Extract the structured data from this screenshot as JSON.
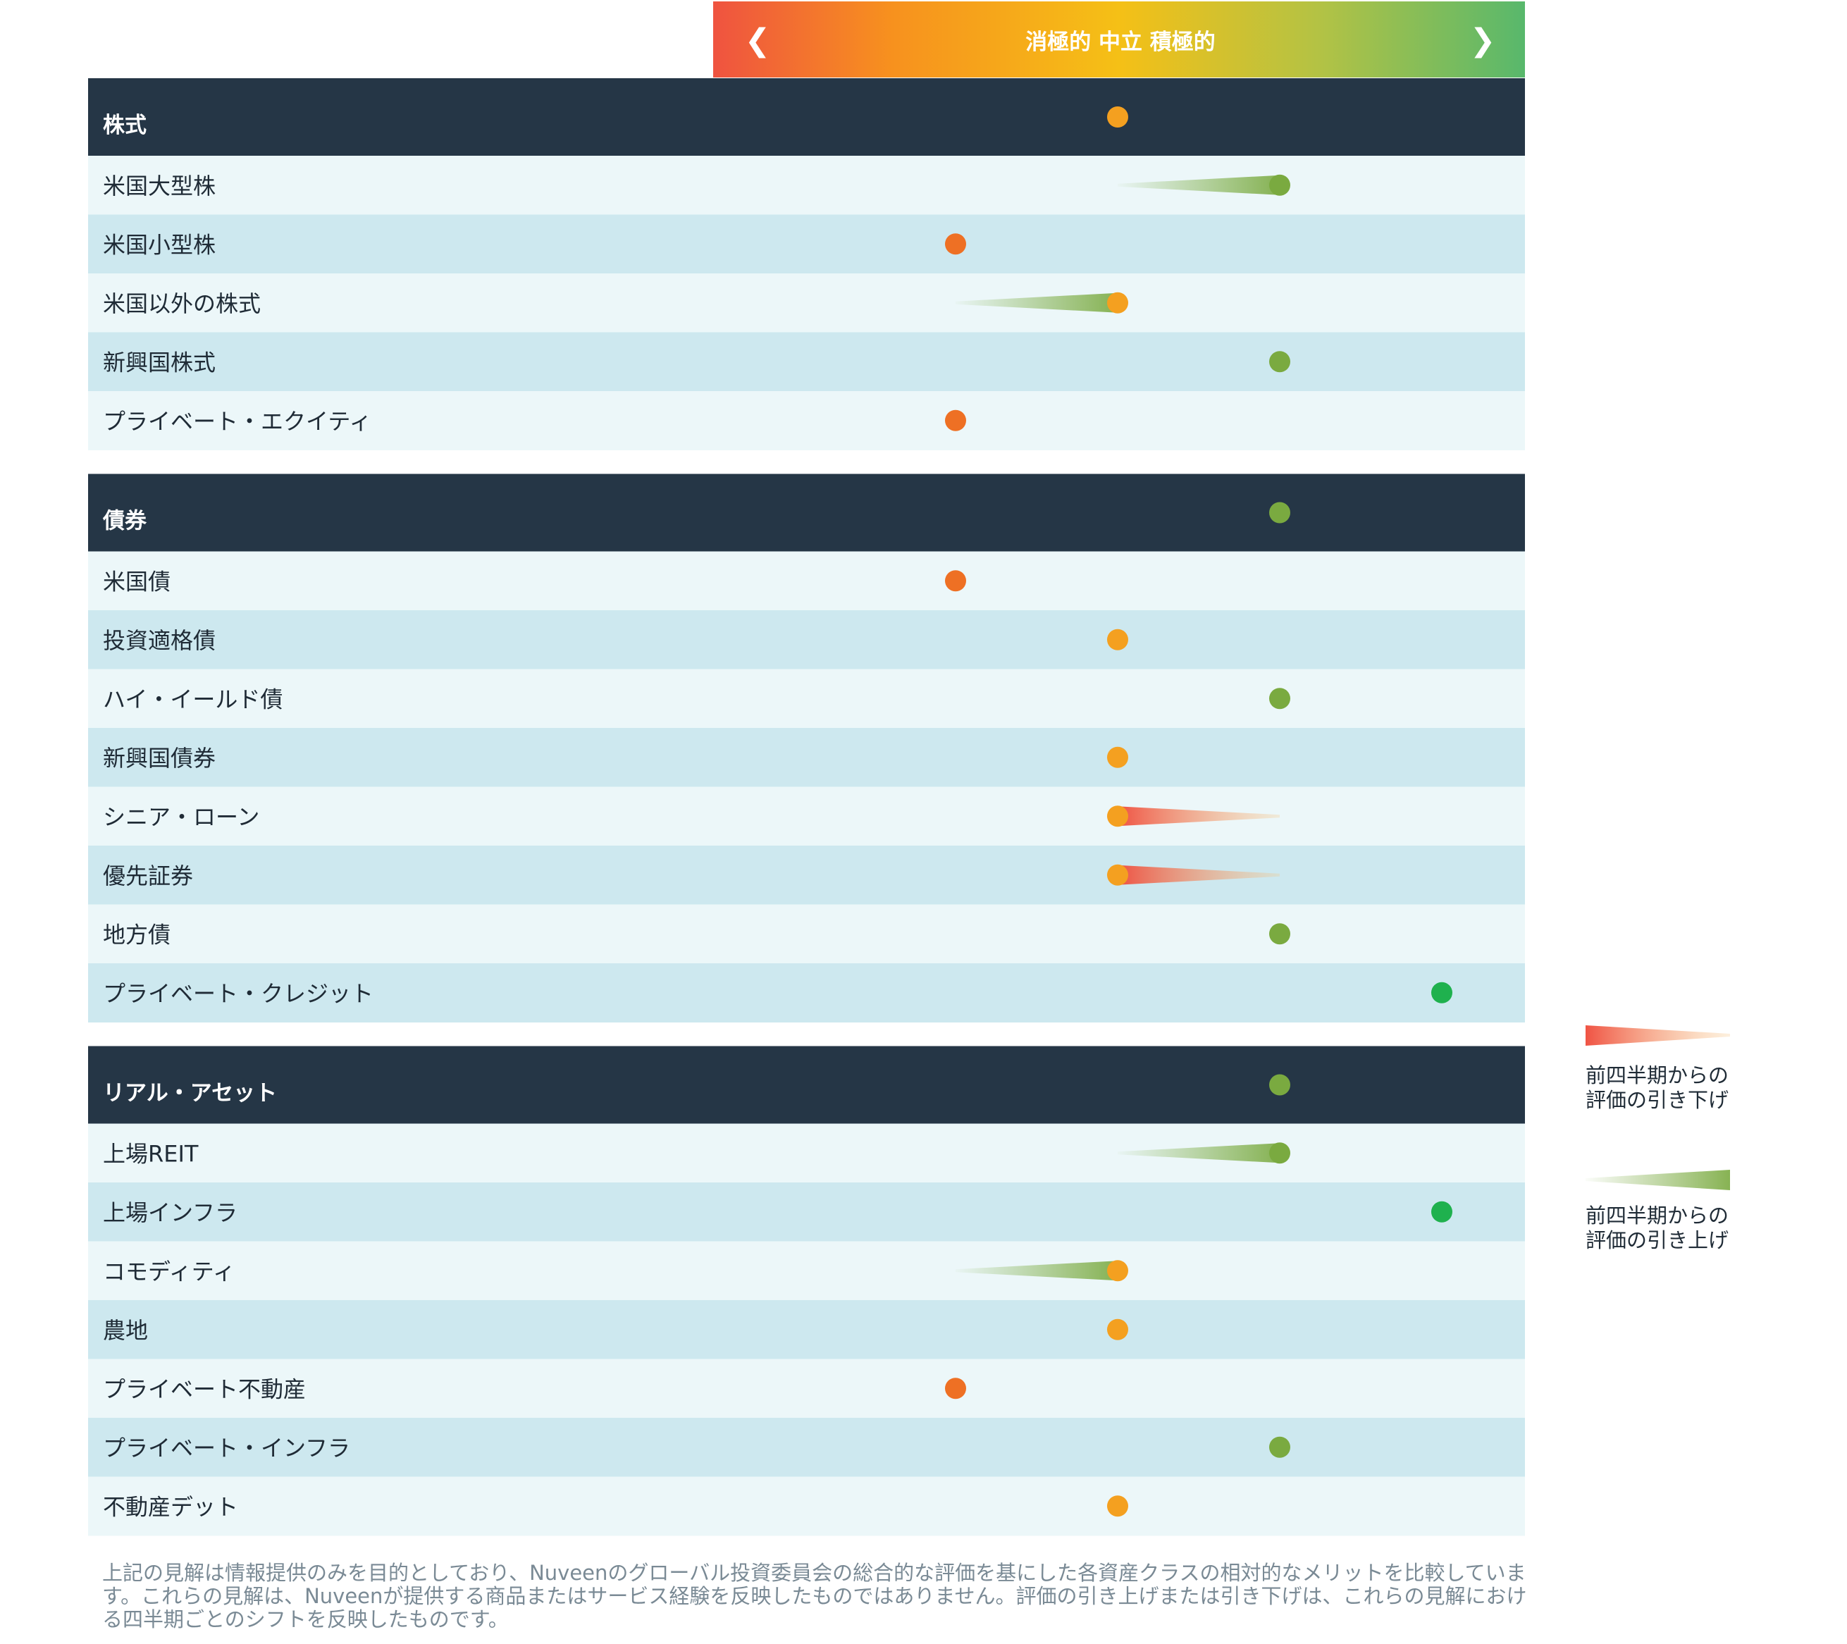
{
  "header": {
    "scale_label": "消極的 中立 積極的",
    "left_arrow": "❮",
    "right_arrow": "❯"
  },
  "colors": {
    "header_bg": "#253646",
    "row_light": "#ecf7f9",
    "row_dark": "#cde8ef",
    "level_1": "#ee7024",
    "level_2": "#f4a020",
    "level_3": "#7aaa40",
    "level_4": "#1fb14e",
    "gradient": [
      "#ef5340",
      "#f7911e",
      "#f5c016",
      "#b2c245",
      "#58b86c"
    ]
  },
  "legend": {
    "downgrade_label": [
      "前四半期からの",
      "評価の引き下げ"
    ],
    "upgrade_label": [
      "前四半期からの",
      "評価の引き上げ"
    ]
  },
  "footnote": "上記の見解は情報提供のみを目的としており、Nuveenのグローバル投資委員会の総合的な評価を基にした各資産クラスの相対的なメリットを比較しています。これらの見解は、Nuveenが提供する商品またはサービス経験を反映したものではありません。評価の引き上げまたは引き下げは、これらの見解における四半期ごとのシフトを反映したものです。",
  "chart_data": {
    "type": "table",
    "scale": [
      "消極的",
      "中立",
      "積極的"
    ],
    "levels": [
      1,
      2,
      3,
      4
    ],
    "groups": [
      {
        "name": "株式",
        "value": 2,
        "rows": [
          {
            "label": "米国大型株",
            "value": 3,
            "previous": 2,
            "change": "up"
          },
          {
            "label": "米国小型株",
            "value": 1
          },
          {
            "label": "米国以外の株式",
            "value": 2,
            "previous": 1,
            "change": "up"
          },
          {
            "label": "新興国株式",
            "value": 3
          },
          {
            "label": "プライベート・エクイティ",
            "value": 1
          }
        ]
      },
      {
        "name": "債券",
        "value": 3,
        "rows": [
          {
            "label": "米国債",
            "value": 1
          },
          {
            "label": "投資適格債",
            "value": 2
          },
          {
            "label": "ハイ・イールド債",
            "value": 3
          },
          {
            "label": "新興国債券",
            "value": 2
          },
          {
            "label": "シニア・ローン",
            "value": 2,
            "previous": 3,
            "change": "down"
          },
          {
            "label": "優先証券",
            "value": 2,
            "previous": 3,
            "change": "down"
          },
          {
            "label": "地方債",
            "value": 3
          },
          {
            "label": "プライベート・クレジット",
            "value": 4
          }
        ]
      },
      {
        "name": "リアル・アセット",
        "value": 3,
        "rows": [
          {
            "label": "上場REIT",
            "value": 3,
            "previous": 2,
            "change": "up"
          },
          {
            "label": "上場インフラ",
            "value": 4
          },
          {
            "label": "コモディティ",
            "value": 2,
            "previous": 1,
            "change": "up"
          },
          {
            "label": "農地",
            "value": 2
          },
          {
            "label": "プライベート不動産",
            "value": 1
          },
          {
            "label": "プライベート・インフラ",
            "value": 3
          },
          {
            "label": "不動産デット",
            "value": 2
          }
        ]
      }
    ]
  }
}
